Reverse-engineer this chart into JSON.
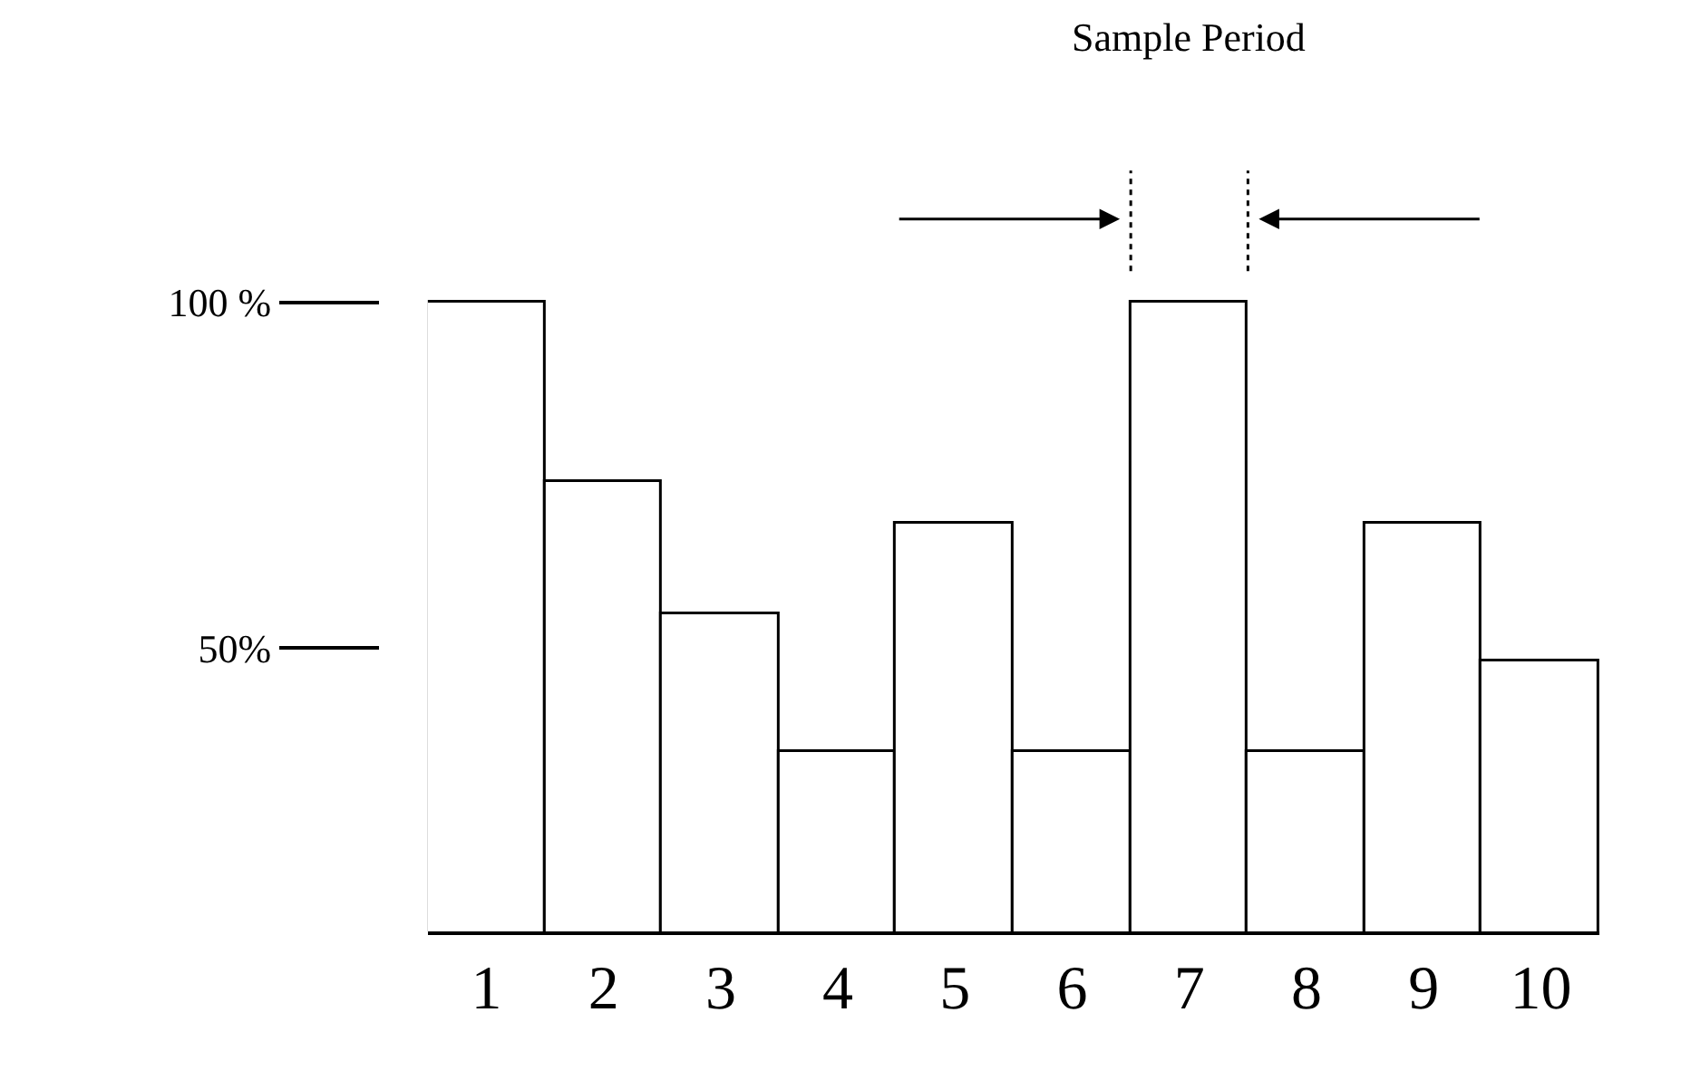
{
  "chart_data": {
    "type": "bar",
    "categories": [
      "1",
      "2",
      "3",
      "4",
      "5",
      "6",
      "7",
      "8",
      "9",
      "10"
    ],
    "values": [
      100,
      74,
      55,
      35,
      68,
      35,
      100,
      35,
      68,
      48
    ],
    "color": "#ffffff",
    "ylim": [
      9,
      100
    ],
    "yticks": [
      {
        "value": 100,
        "label": "100 %"
      },
      {
        "value": 50,
        "label": "50%"
      }
    ],
    "annotations": [
      "Sample Period"
    ]
  }
}
